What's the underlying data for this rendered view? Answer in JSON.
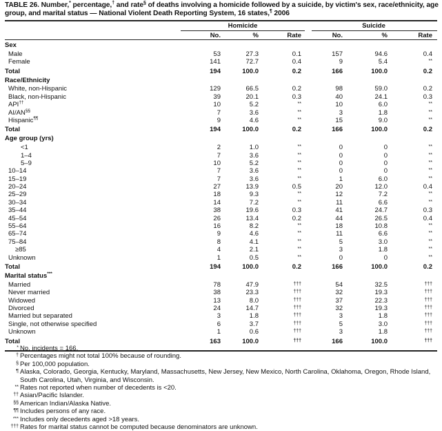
{
  "title": {
    "parts": [
      "TABLE 26. Number,",
      "*",
      " percentage,",
      "†",
      " and rate",
      "§",
      " of deaths involving a homicide followed by a suicide, by victim's sex, race/ethnicity, age group, and marital status — National Violent Death Reporting System, 16 states,",
      "¶",
      " 2006"
    ]
  },
  "groups": {
    "homicide": "Homicide",
    "suicide": "Suicide"
  },
  "columns": [
    "No.",
    "%",
    "Rate",
    "No.",
    "%",
    "Rate"
  ],
  "rows": [
    {
      "type": "section",
      "label": "Sex"
    },
    {
      "type": "data",
      "label": "Male",
      "values": [
        "53",
        "27.3",
        "0.1",
        "157",
        "94.6",
        "0.4"
      ]
    },
    {
      "type": "data",
      "label": "Female",
      "values": [
        "141",
        "72.7",
        "0.4",
        "9",
        "5.4",
        "**"
      ]
    },
    {
      "type": "total",
      "label": "Total",
      "values": [
        "194",
        "100.0",
        "0.2",
        "166",
        "100.0",
        "0.2"
      ]
    },
    {
      "type": "section",
      "label": "Race/Ethnicity"
    },
    {
      "type": "data",
      "label": "White, non-Hispanic",
      "values": [
        "129",
        "66.5",
        "0.2",
        "98",
        "59.0",
        "0.2"
      ]
    },
    {
      "type": "data",
      "label": "Black, non-Hispanic",
      "values": [
        "39",
        "20.1",
        "0.3",
        "40",
        "24.1",
        "0.3"
      ]
    },
    {
      "type": "data",
      "label": "API",
      "sup": "††",
      "values": [
        "10",
        "5.2",
        "**",
        "10",
        "6.0",
        "**"
      ]
    },
    {
      "type": "data",
      "label": "AI/AN",
      "sup": "§§",
      "values": [
        "7",
        "3.6",
        "**",
        "3",
        "1.8",
        "**"
      ]
    },
    {
      "type": "data",
      "label": "Hispanic",
      "sup": "¶¶",
      "values": [
        "9",
        "4.6",
        "**",
        "15",
        "9.0",
        "**"
      ]
    },
    {
      "type": "total",
      "label": "Total",
      "values": [
        "194",
        "100.0",
        "0.2",
        "166",
        "100.0",
        "0.2"
      ]
    },
    {
      "type": "section",
      "label": "Age group (yrs)"
    },
    {
      "type": "data",
      "indent": 2,
      "label": "<1",
      "values": [
        "2",
        "1.0",
        "**",
        "0",
        "0",
        "**"
      ]
    },
    {
      "type": "data",
      "indent": 2,
      "label": "1–4",
      "values": [
        "7",
        "3.6",
        "**",
        "0",
        "0",
        "**"
      ]
    },
    {
      "type": "data",
      "indent": 2,
      "label": "5–9",
      "values": [
        "10",
        "5.2",
        "**",
        "0",
        "0",
        "**"
      ]
    },
    {
      "type": "data",
      "label": "10–14",
      "values": [
        "7",
        "3.6",
        "**",
        "0",
        "0",
        "**"
      ]
    },
    {
      "type": "data",
      "label": "15–19",
      "values": [
        "7",
        "3.6",
        "**",
        "1",
        "6.0",
        "**"
      ]
    },
    {
      "type": "data",
      "label": "20–24",
      "values": [
        "27",
        "13.9",
        "0.5",
        "20",
        "12.0",
        "0.4"
      ]
    },
    {
      "type": "data",
      "label": "25–29",
      "values": [
        "18",
        "9.3",
        "**",
        "12",
        "7.2",
        "**"
      ]
    },
    {
      "type": "data",
      "label": "30–34",
      "values": [
        "14",
        "7.2",
        "**",
        "11",
        "6.6",
        "**"
      ]
    },
    {
      "type": "data",
      "label": "35–44",
      "values": [
        "38",
        "19.6",
        "0.3",
        "41",
        "24.7",
        "0.3"
      ]
    },
    {
      "type": "data",
      "label": "45–54",
      "values": [
        "26",
        "13.4",
        "0.2",
        "44",
        "26.5",
        "0.4"
      ]
    },
    {
      "type": "data",
      "label": "55–64",
      "values": [
        "16",
        "8.2",
        "**",
        "18",
        "10.8",
        "**"
      ]
    },
    {
      "type": "data",
      "label": "65–74",
      "values": [
        "9",
        "4.6",
        "**",
        "11",
        "6.6",
        "**"
      ]
    },
    {
      "type": "data",
      "label": "75–84",
      "values": [
        "8",
        "4.1",
        "**",
        "5",
        "3.0",
        "**"
      ]
    },
    {
      "type": "data",
      "indent": 1,
      "label": "≥85",
      "values": [
        "4",
        "2.1",
        "**",
        "3",
        "1.8",
        "**"
      ]
    },
    {
      "type": "data",
      "label": "Unknown",
      "values": [
        "1",
        "0.5",
        "**",
        "0",
        "0",
        "**"
      ]
    },
    {
      "type": "total",
      "label": "Total",
      "values": [
        "194",
        "100.0",
        "0.2",
        "166",
        "100.0",
        "0.2"
      ]
    },
    {
      "type": "section",
      "label": "Marital status",
      "sup": "***"
    },
    {
      "type": "data",
      "label": "Married",
      "values": [
        "78",
        "47.9",
        "†††",
        "54",
        "32.5",
        "†††"
      ]
    },
    {
      "type": "data",
      "label": "Never married",
      "values": [
        "38",
        "23.3",
        "†††",
        "32",
        "19.3",
        "†††"
      ]
    },
    {
      "type": "data",
      "label": "Widowed",
      "values": [
        "13",
        "8.0",
        "†††",
        "37",
        "22.3",
        "†††"
      ]
    },
    {
      "type": "data",
      "label": "Divorced",
      "values": [
        "24",
        "14.7",
        "†††",
        "32",
        "19.3",
        "†††"
      ]
    },
    {
      "type": "data",
      "label": "Married but separated",
      "values": [
        "3",
        "1.8",
        "†††",
        "3",
        "1.8",
        "†††"
      ]
    },
    {
      "type": "data",
      "label": "Single, not otherwise specified",
      "values": [
        "6",
        "3.7",
        "†††",
        "5",
        "3.0",
        "†††"
      ]
    },
    {
      "type": "data",
      "label": "Unknown",
      "values": [
        "1",
        "0.6",
        "†††",
        "3",
        "1.8",
        "†††"
      ]
    },
    {
      "type": "total",
      "label": "Total",
      "values": [
        "163",
        "100.0",
        "†††",
        "166",
        "100.0",
        "†††"
      ]
    }
  ],
  "footnotes": [
    {
      "sym": "*",
      "text": "No. incidents = 166."
    },
    {
      "sym": "†",
      "text": "Percentages might not total 100% because of rounding."
    },
    {
      "sym": "§",
      "text": "Per 100,000 population."
    },
    {
      "sym": "¶",
      "text": "Alaska, Colorado, Georgia, Kentucky, Maryland, Massachusetts, New Jersey, New Mexico, North Carolina, Oklahoma, Oregon, Rhode Island, South Carolina, Utah, Virginia, and Wisconsin."
    },
    {
      "sym": "**",
      "text": "Rates not reported when number of decedents is <20."
    },
    {
      "sym": "††",
      "text": "Asian/Pacific Islander."
    },
    {
      "sym": "§§",
      "text": "American Indian/Alaska Native."
    },
    {
      "sym": "¶¶",
      "text": "Includes persons of any race."
    },
    {
      "sym": "***",
      "text": "Includes only decedents aged >18 years."
    },
    {
      "sym": "†††",
      "text": "Rates for marital status cannot be computed because denominators are unknown."
    }
  ]
}
